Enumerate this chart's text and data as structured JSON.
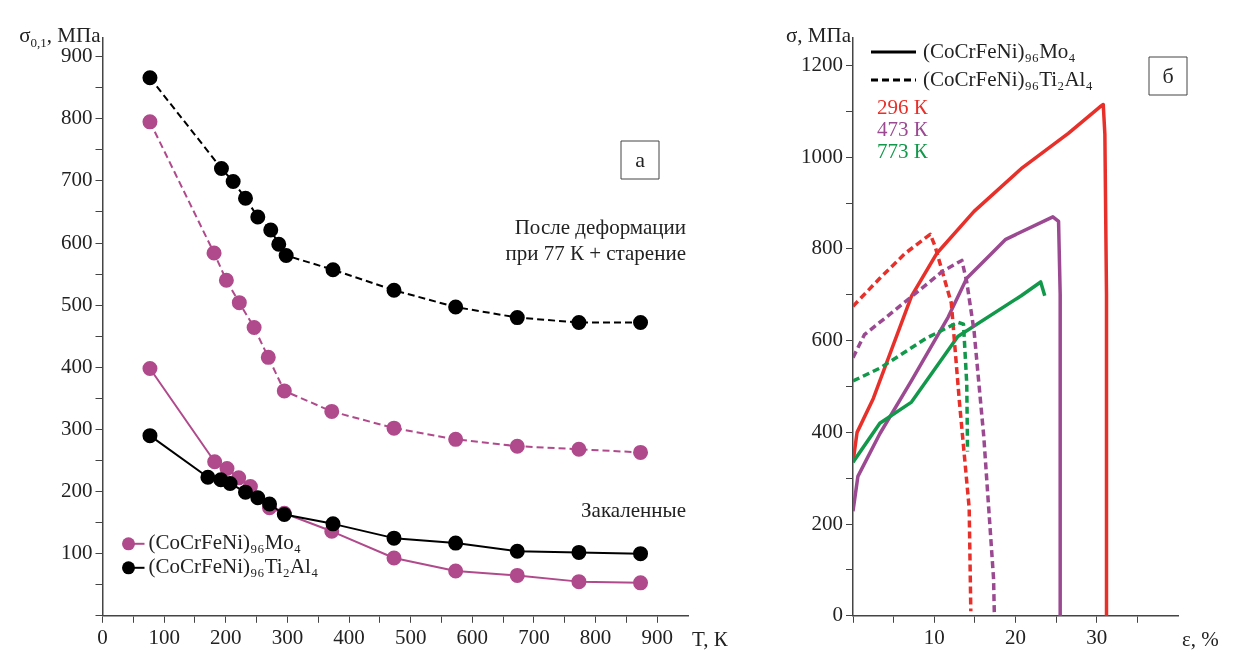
{
  "chart_data": [
    {
      "type": "line",
      "xlabel": "T, К",
      "ylabel": "σ$_{0,1}$, МПа",
      "xlim": [
        0,
        950
      ],
      "ylim": [
        0,
        930
      ],
      "xticks": [
        0,
        {
          "value": 50,
          "label": null
        },
        100,
        {
          "value": 150,
          "label": null
        },
        200,
        {
          "value": 250,
          "label": null
        },
        300,
        {
          "value": 350,
          "label": null
        },
        400,
        {
          "value": 450,
          "label": null
        },
        500,
        {
          "value": 550,
          "label": null
        },
        600,
        {
          "value": 650,
          "label": null
        },
        700,
        {
          "value": 750,
          "label": null
        },
        800,
        {
          "value": 850,
          "label": null
        },
        900
      ],
      "yticks": [
        {
          "value": 0,
          "label": null
        },
        {
          "value": 50,
          "label": null
        },
        100,
        {
          "value": 150,
          "label": null
        },
        200,
        {
          "value": 250,
          "label": null
        },
        300,
        {
          "value": 350,
          "label": null
        },
        400,
        {
          "value": 450,
          "label": null
        },
        500,
        {
          "value": 550,
          "label": null
        },
        600,
        {
          "value": 650,
          "label": null
        },
        700,
        {
          "value": 750,
          "label": null
        },
        800,
        {
          "value": 850,
          "label": null
        },
        900
      ],
      "marker": "circle",
      "legend": "bottom left",
      "annotations": [
        "а",
        "После деформации\nпри 77 К + старение",
        "Закаленные"
      ],
      "series": [
        {
          "name": "(CoCrFeNi)₉₆Mo₄",
          "color": "#b04a8c",
          "line_style": "solid",
          "x": [
            77,
            182,
            202,
            221,
            240,
            271,
            295,
            372,
            473,
            573,
            673,
            773,
            873
          ],
          "values": [
            398,
            248,
            237,
            222,
            208,
            174,
            165,
            136,
            93,
            72,
            65,
            55,
            53
          ]
        },
        {
          "name": "(CoCrFeNi)₉₆Ti₂Al₄",
          "color": "#000000",
          "line_style": "solid",
          "x": [
            77,
            171,
            192,
            207,
            232,
            252,
            271,
            295,
            374,
            473,
            573,
            673,
            773,
            873
          ],
          "values": [
            290,
            223,
            219,
            213,
            199,
            190,
            180,
            163,
            148,
            125,
            117,
            104,
            102,
            100
          ]
        },
        {
          "color": "#b04a8c",
          "line_style": "dashed",
          "x": [
            77,
            181,
            201,
            222,
            246,
            269,
            295,
            372,
            473,
            573,
            673,
            773,
            873
          ],
          "values": [
            795,
            584,
            540,
            504,
            464,
            416,
            362,
            329,
            302,
            284,
            273,
            268,
            263
          ]
        },
        {
          "color": "#000000",
          "line_style": "dashed",
          "x": [
            77,
            193,
            212,
            232,
            252,
            273,
            286,
            298,
            374,
            473,
            573,
            673,
            773,
            873
          ],
          "values": [
            866,
            720,
            699,
            672,
            642,
            621,
            598,
            580,
            557,
            524,
            497,
            480,
            472,
            472
          ]
        }
      ]
    },
    {
      "type": "line",
      "xlabel": "ε, %",
      "ylabel": "σ, МПа",
      "xlim": [
        0,
        40
      ],
      "ylim": [
        0,
        1260
      ],
      "xticks": [
        {
          "value": 0,
          "label": null
        },
        {
          "value": 5,
          "label": null
        },
        10,
        {
          "value": 15,
          "label": null
        },
        20,
        {
          "value": 25,
          "label": null
        },
        30,
        {
          "value": 35,
          "label": null
        }
      ],
      "yticks": [
        0,
        {
          "value": 100,
          "label": null
        },
        200,
        {
          "value": 300,
          "label": null
        },
        400,
        {
          "value": 500,
          "label": null
        },
        600,
        {
          "value": 700,
          "label": null
        },
        800,
        {
          "value": 900,
          "label": null
        },
        1000,
        {
          "value": 1100,
          "label": null
        },
        1200
      ],
      "marker": "none",
      "legend": "top left",
      "annotations": [
        "б",
        "(CoCrFeNi)₉₆Mo₄",
        "(CoCrFeNi)₉₆Ti₂Al₄"
      ],
      "series": [
        {
          "name": "296 К",
          "color": "#e8302a",
          "line_style": "solid",
          "x": [
            0,
            0.5,
            2.5,
            7.2,
            10.3,
            14.9,
            20.7,
            26.5,
            30.4,
            30.8,
            31.0,
            31.2,
            31.2
          ],
          "values": [
            335,
            400,
            474,
            697,
            790,
            882,
            975,
            1052,
            1110,
            1115,
            1050,
            700,
            0
          ]
        },
        {
          "name": "473 К",
          "color": "#9b4a92",
          "line_style": "solid",
          "x": [
            0,
            0.6,
            3.3,
            7.2,
            11.7,
            14,
            18.8,
            24.6,
            25.3,
            25.5,
            25.5
          ],
          "values": [
            228,
            304,
            397,
            513,
            651,
            736,
            821,
            870,
            860,
            700,
            0
          ]
        },
        {
          "name": "773 К",
          "color": "#12984a",
          "line_style": "solid",
          "x": [
            0,
            3.3,
            7.2,
            12.9,
            20.7,
            23.1,
            23.6
          ],
          "values": [
            335,
            420,
            466,
            609,
            698,
            728,
            698
          ]
        },
        {
          "color": "#e8302a",
          "line_style": "dashed",
          "x": [
            0,
            3.3,
            6.4,
            9.5,
            10.1,
            12.1,
            13.1,
            14.3,
            14.5
          ],
          "values": [
            675,
            736,
            790,
            832,
            806,
            682,
            466,
            235,
            10
          ]
        },
        {
          "color": "#9b4a92",
          "line_style": "dashed",
          "x": [
            0,
            1.4,
            5.2,
            11,
            13.4,
            14,
            14.9,
            16.1,
            17.3,
            17.4
          ],
          "values": [
            563,
            613,
            667,
            751,
            775,
            728,
            621,
            390,
            81,
            0
          ]
        },
        {
          "color": "#12984a",
          "line_style": "dashed",
          "x": [
            0,
            3.3,
            9,
            12.9,
            13.6,
            14,
            14.1
          ],
          "values": [
            512,
            540,
            605,
            640,
            636,
            506,
            358
          ]
        }
      ]
    }
  ]
}
